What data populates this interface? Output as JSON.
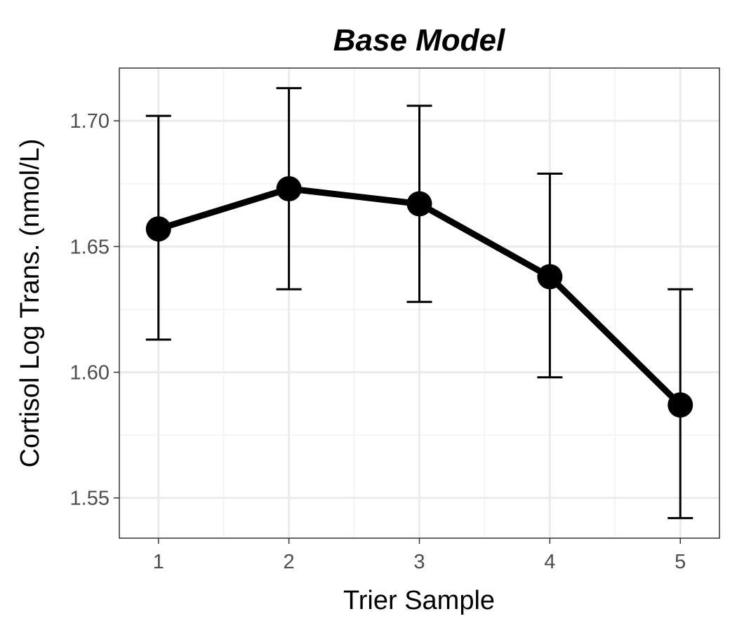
{
  "chart_data": {
    "type": "line",
    "title": "Base Model",
    "xlabel": "Trier Sample",
    "ylabel": "Cortisol Log Trans. (nmol/L)",
    "x": [
      1,
      2,
      3,
      4,
      5
    ],
    "x_tick_labels": [
      "1",
      "2",
      "3",
      "4",
      "5"
    ],
    "y_ticks": [
      1.55,
      1.6,
      1.65,
      1.7
    ],
    "y_tick_labels": [
      "1.55",
      "1.60",
      "1.65",
      "1.70"
    ],
    "xlim": [
      0.7,
      5.3
    ],
    "ylim": [
      1.534,
      1.721
    ],
    "grid": true,
    "series": [
      {
        "values": [
          1.657,
          1.673,
          1.667,
          1.638,
          1.587
        ],
        "error_lower": [
          1.613,
          1.633,
          1.628,
          1.598,
          1.542
        ],
        "error_upper": [
          1.702,
          1.713,
          1.706,
          1.679,
          1.633
        ],
        "color": "#000000"
      }
    ],
    "colors": {
      "line": "#000000",
      "grid_major": "#ebebeb",
      "grid_minor": "#f2f2f2",
      "panel_border": "#333333",
      "tick_text": "#4d4d4d"
    }
  }
}
